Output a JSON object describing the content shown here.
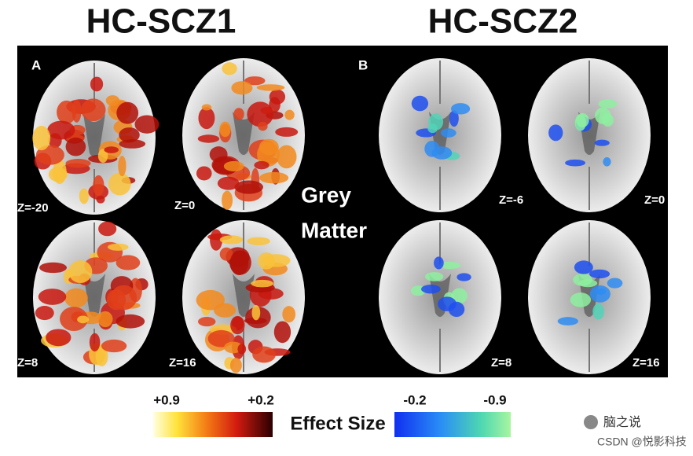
{
  "titles": [
    "HC-SCZ1",
    "HC-SCZ2"
  ],
  "panels": [
    {
      "label": "A",
      "slices": [
        "Z=-20",
        "Z=0",
        "Z=8",
        "Z=16"
      ]
    },
    {
      "label": "B",
      "slices": [
        "Z=-6",
        "Z=0",
        "Z=8",
        "Z=16"
      ]
    }
  ],
  "overlay_label": [
    "Grey",
    "Matter"
  ],
  "colorbars": [
    {
      "left": "+0.9",
      "right": "+0.2"
    },
    {
      "left": "-0.2",
      "right": "-0.9"
    }
  ],
  "colorbar_title": "Effect Size",
  "watermark": {
    "logo_text": "脑之说",
    "credit": "CSDN @悦影科技"
  }
}
